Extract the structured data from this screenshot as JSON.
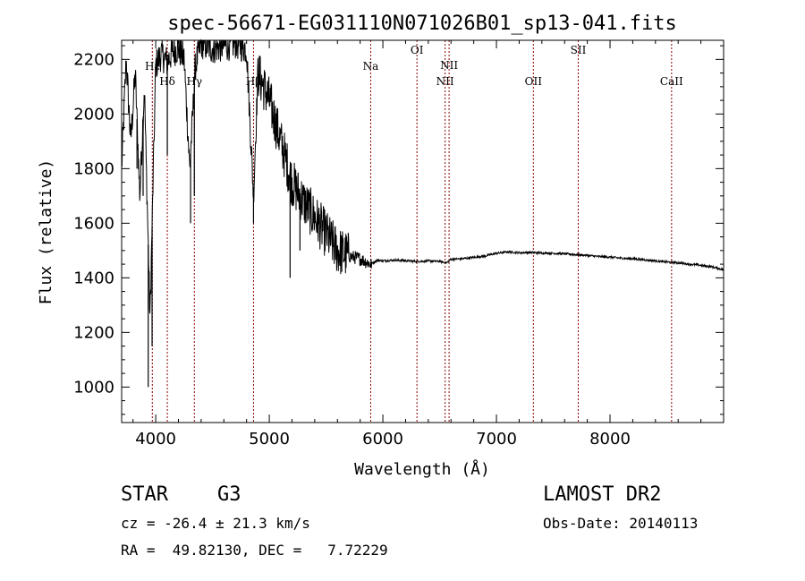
{
  "chart_data": {
    "type": "line",
    "title": "spec-56671-EG031110N071026B01_sp13-041.fits",
    "xlabel": "Wavelength (Å)",
    "ylabel": "Flux (relative)",
    "xlim": [
      3700,
      9000
    ],
    "ylim": [
      870,
      2270
    ],
    "xticks": [
      4000,
      5000,
      6000,
      7000,
      8000
    ],
    "yticks": [
      1000,
      1200,
      1400,
      1600,
      1800,
      2000,
      2200
    ],
    "grid": false,
    "legend": "none",
    "line_color": "#000000",
    "marker_color": "#8b0000",
    "line_markers": [
      {
        "label": "Hε",
        "x": 3970
      },
      {
        "label": "Hδ",
        "x": 4102
      },
      {
        "label": "Hγ",
        "x": 4340
      },
      {
        "label": "Hβ",
        "x": 4861
      },
      {
        "label": "Na",
        "x": 5893
      },
      {
        "label": "OI",
        "x": 6300
      },
      {
        "label": "NII",
        "x": 6548
      },
      {
        "label": "NII",
        "x": 6583
      },
      {
        "label": "OII",
        "x": 7325
      },
      {
        "label": "SII",
        "x": 7720
      },
      {
        "label": "CaII",
        "x": 8542
      }
    ],
    "series": [
      {
        "x": [
          3700,
          3740,
          3780,
          3820,
          3860,
          3900,
          3950,
          4000,
          4050,
          4100,
          4150,
          4200,
          4250,
          4300,
          4350,
          4400,
          4500,
          4600,
          4700,
          4800,
          4861,
          4900,
          5000,
          5100,
          5200,
          5300,
          5400,
          5500,
          5600,
          5700,
          5800,
          5893,
          5950,
          6000,
          6100,
          6200,
          6300,
          6400,
          6500,
          6563,
          6600,
          6700,
          6800,
          6900,
          7000,
          7100,
          7200,
          7300,
          7400,
          7500,
          7600,
          7700,
          7800,
          7900,
          8000,
          8100,
          8200,
          8300,
          8400,
          8500,
          8600,
          8700,
          8800,
          8900,
          9000
        ],
        "y": [
          1800,
          2200,
          1900,
          2150,
          1700,
          2100,
          1250,
          2180,
          2220,
          2190,
          2230,
          2240,
          2200,
          1800,
          2180,
          2260,
          2240,
          2250,
          2260,
          2240,
          1700,
          2150,
          2050,
          1900,
          1750,
          1680,
          1620,
          1560,
          1500,
          1480,
          1470,
          1450,
          1465,
          1462,
          1465,
          1463,
          1460,
          1462,
          1460,
          1455,
          1468,
          1470,
          1475,
          1480,
          1490,
          1495,
          1492,
          1493,
          1491,
          1490,
          1488,
          1485,
          1482,
          1478,
          1476,
          1472,
          1470,
          1466,
          1462,
          1458,
          1455,
          1450,
          1446,
          1440,
          1430
        ]
      }
    ]
  },
  "info": {
    "object_type": "STAR",
    "subclass": "G3",
    "survey": "LAMOST DR2",
    "cz": "cz = -26.4 ± 21.3 km/s",
    "obs_date": "Obs-Date: 20140113",
    "coords": "RA =  49.82130, DEC =   7.72229"
  }
}
